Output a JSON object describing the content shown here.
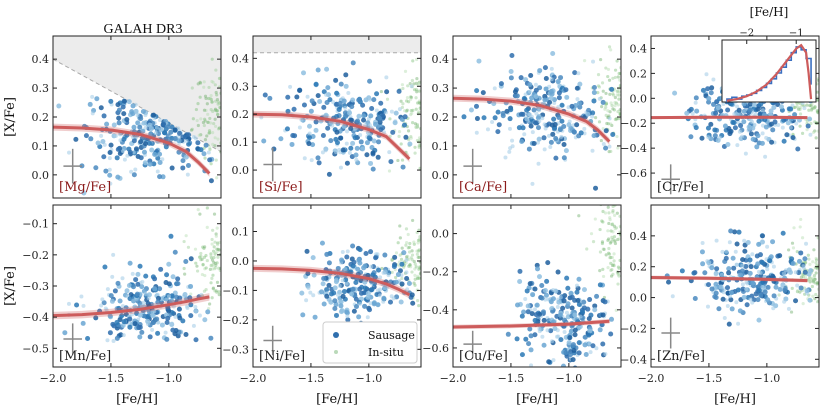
{
  "figure_title": "GALAH DR3",
  "shared": {
    "xlabel": "[Fe/H]",
    "ylabel": "[X/Fe]",
    "xlim": [
      -2.0,
      -0.55
    ],
    "xticks": [
      -2.0,
      -1.5,
      -1.0
    ],
    "xtick_labels": [
      "−2.0",
      "−1.5",
      "−1.0"
    ],
    "legend": [
      "Sausage",
      "In-situ"
    ],
    "series_colors": {
      "Sausage": "#2f6fae",
      "In-situ": "#8cc08a",
      "trend": "#cd5c5c",
      "limit_region": "#ececec"
    }
  },
  "chart_data": [
    {
      "type": "scatter",
      "element": "[Mg/Fe]",
      "label_color": "#8b1a1a",
      "ylim": [
        -0.08,
        0.48
      ],
      "yticks": [
        0.0,
        0.1,
        0.2,
        0.3,
        0.4
      ],
      "ytick_labels": [
        "0.0",
        "0.1",
        "0.2",
        "0.3",
        "0.4"
      ],
      "trend": {
        "x": [
          -2.0,
          -1.75,
          -1.5,
          -1.25,
          -1.0,
          -0.85,
          -0.75,
          -0.65
        ],
        "y": [
          0.165,
          0.162,
          0.155,
          0.14,
          0.11,
          0.08,
          0.045,
          0.005
        ]
      },
      "sausage": {
        "x_mean": -1.2,
        "x_sd": 0.25,
        "y_mean": 0.14,
        "y_sd": 0.07
      },
      "insitu": {
        "y_mean": 0.2,
        "y_sd": 0.08
      },
      "limit": {
        "type": "diagonal",
        "x": [
          -2.0,
          -0.55
        ],
        "y": [
          0.4,
          0.08
        ]
      },
      "error_bar": {
        "x": -1.83,
        "y": 0.03,
        "dx": 0.08,
        "dy": 0.06
      }
    },
    {
      "type": "scatter",
      "element": "[Si/Fe]",
      "label_color": "#8b1a1a",
      "ylim": [
        -0.1,
        0.48
      ],
      "yticks": [
        0.0,
        0.1,
        0.2,
        0.3,
        0.4
      ],
      "ytick_labels": [
        "0.0",
        "0.1",
        "0.2",
        "0.3",
        "0.4"
      ],
      "trend": {
        "x": [
          -2.0,
          -1.75,
          -1.5,
          -1.25,
          -1.0,
          -0.85,
          -0.75,
          -0.65
        ],
        "y": [
          0.2,
          0.198,
          0.19,
          0.175,
          0.145,
          0.12,
          0.08,
          0.04
        ]
      },
      "sausage": {
        "x_mean": -1.2,
        "x_sd": 0.25,
        "y_mean": 0.17,
        "y_sd": 0.08
      },
      "insitu": {
        "y_mean": 0.2,
        "y_sd": 0.08
      },
      "limit": {
        "type": "horizontal",
        "y": 0.42
      },
      "error_bar": {
        "x": -1.83,
        "y": 0.02,
        "dx": 0.08,
        "dy": 0.06
      }
    },
    {
      "type": "scatter",
      "element": "[Ca/Fe]",
      "label_color": "#8b1a1a",
      "ylim": [
        -0.08,
        0.48
      ],
      "yticks": [
        0.0,
        0.1,
        0.2,
        0.3,
        0.4
      ],
      "ytick_labels": [
        "0.0",
        "0.1",
        "0.2",
        "0.3",
        "0.4"
      ],
      "trend": {
        "x": [
          -2.0,
          -1.75,
          -1.5,
          -1.25,
          -1.0,
          -0.85,
          -0.75,
          -0.65
        ],
        "y": [
          0.265,
          0.262,
          0.255,
          0.24,
          0.21,
          0.185,
          0.155,
          0.115
        ]
      },
      "sausage": {
        "x_mean": -1.2,
        "x_sd": 0.25,
        "y_mean": 0.22,
        "y_sd": 0.08
      },
      "insitu": {
        "y_mean": 0.26,
        "y_sd": 0.08
      },
      "error_bar": {
        "x": -1.83,
        "y": 0.03,
        "dx": 0.08,
        "dy": 0.06
      }
    },
    {
      "type": "scatter",
      "element": "[Cr/Fe]",
      "label_color": "#222222",
      "ylim": [
        -0.8,
        0.5
      ],
      "yticks": [
        -0.6,
        -0.4,
        -0.2,
        0.0,
        0.2,
        0.4
      ],
      "ytick_labels": [
        "−0.6",
        "−0.4",
        "−0.2",
        "0.0",
        "0.2",
        "0.4"
      ],
      "trend": {
        "x": [
          -2.0,
          -1.5,
          -1.0,
          -0.65
        ],
        "y": [
          -0.155,
          -0.152,
          -0.152,
          -0.155
        ]
      },
      "sausage": {
        "x_mean": -1.15,
        "x_sd": 0.25,
        "y_mean": -0.15,
        "y_sd": 0.12
      },
      "insitu": {
        "y_mean": -0.05,
        "y_sd": 0.1
      },
      "error_bar": {
        "x": -1.83,
        "y": -0.65,
        "dx": 0.08,
        "dy": 0.12
      },
      "inset": {
        "type": "histogram",
        "xlabel": "[Fe/H]",
        "xlim": [
          -2.5,
          -0.6
        ],
        "xticks": [
          -2.0,
          -1.0
        ],
        "xtick_labels": [
          "−2",
          "−1"
        ],
        "bin_edges": [
          -2.4,
          -2.3,
          -2.2,
          -2.1,
          -2.0,
          -1.9,
          -1.8,
          -1.7,
          -1.6,
          -1.5,
          -1.4,
          -1.3,
          -1.2,
          -1.1,
          -1.0,
          -0.9,
          -0.8,
          -0.7
        ],
        "counts": [
          0.05,
          0.08,
          0.05,
          0.1,
          0.12,
          0.15,
          0.2,
          0.25,
          0.32,
          0.4,
          0.5,
          0.6,
          0.72,
          0.85,
          0.95,
          0.9,
          0.75,
          0.3
        ],
        "fit_x": [
          -2.4,
          -2.2,
          -2.0,
          -1.8,
          -1.6,
          -1.4,
          -1.2,
          -1.0,
          -0.9,
          -0.8,
          -0.75,
          -0.7
        ],
        "fit_y": [
          0.02,
          0.05,
          0.1,
          0.18,
          0.3,
          0.48,
          0.7,
          0.92,
          0.98,
          0.85,
          0.5,
          0.05
        ]
      }
    },
    {
      "type": "scatter",
      "element": "[Mn/Fe]",
      "label_color": "#222222",
      "ylim": [
        -0.56,
        -0.04
      ],
      "yticks": [
        -0.5,
        -0.4,
        -0.3,
        -0.2,
        -0.1
      ],
      "ytick_labels": [
        "−0.5",
        "−0.4",
        "−0.3",
        "−0.2",
        "−0.1"
      ],
      "trend": {
        "x": [
          -2.0,
          -1.75,
          -1.5,
          -1.25,
          -1.0,
          -0.85,
          -0.75,
          -0.65
        ],
        "y": [
          -0.395,
          -0.392,
          -0.385,
          -0.375,
          -0.36,
          -0.35,
          -0.342,
          -0.335
        ]
      },
      "sausage": {
        "x_mean": -1.2,
        "x_sd": 0.25,
        "y_mean": -0.37,
        "y_sd": 0.06
      },
      "insitu": {
        "y_mean": -0.22,
        "y_sd": 0.06
      },
      "error_bar": {
        "x": -1.83,
        "y": -0.47,
        "dx": 0.08,
        "dy": 0.05
      }
    },
    {
      "type": "scatter",
      "element": "[Ni/Fe]",
      "label_color": "#222222",
      "ylim": [
        -0.36,
        0.19
      ],
      "yticks": [
        -0.3,
        -0.2,
        -0.1,
        0.0,
        0.1
      ],
      "ytick_labels": [
        "−0.3",
        "−0.2",
        "−0.1",
        "0.0",
        "0.1"
      ],
      "trend": {
        "x": [
          -2.0,
          -1.75,
          -1.5,
          -1.25,
          -1.0,
          -0.85,
          -0.75,
          -0.65
        ],
        "y": [
          -0.025,
          -0.027,
          -0.032,
          -0.042,
          -0.06,
          -0.078,
          -0.095,
          -0.115
        ]
      },
      "sausage": {
        "x_mean": -1.1,
        "x_sd": 0.22,
        "y_mean": -0.08,
        "y_sd": 0.06
      },
      "insitu": {
        "y_mean": 0.0,
        "y_sd": 0.06
      },
      "error_bar": {
        "x": -1.83,
        "y": -0.27,
        "dx": 0.08,
        "dy": 0.05
      }
    },
    {
      "type": "scatter",
      "element": "[Cu/Fe]",
      "label_color": "#222222",
      "ylim": [
        -0.7,
        0.15
      ],
      "yticks": [
        -0.6,
        -0.4,
        -0.2,
        0.0
      ],
      "ytick_labels": [
        "−0.6",
        "−0.4",
        "−0.2",
        "0.0"
      ],
      "trend": {
        "x": [
          -2.0,
          -1.5,
          -1.0,
          -0.65
        ],
        "y": [
          -0.49,
          -0.485,
          -0.475,
          -0.46
        ]
      },
      "sausage": {
        "x_mean": -1.05,
        "x_sd": 0.2,
        "y_mean": -0.45,
        "y_sd": 0.12
      },
      "insitu": {
        "y_mean": -0.05,
        "y_sd": 0.12
      },
      "error_bar": {
        "x": -1.83,
        "y": -0.58,
        "dx": 0.08,
        "dy": 0.07
      }
    },
    {
      "type": "scatter",
      "element": "[Zn/Fe]",
      "label_color": "#222222",
      "ylim": [
        -0.45,
        0.6
      ],
      "yticks": [
        -0.4,
        -0.2,
        0.0,
        0.2,
        0.4
      ],
      "ytick_labels": [
        "−0.4",
        "−0.2",
        "0.0",
        "0.2",
        "0.4"
      ],
      "trend": {
        "x": [
          -2.0,
          -1.5,
          -1.0,
          -0.65
        ],
        "y": [
          0.13,
          0.125,
          0.118,
          0.11
        ]
      },
      "sausage": {
        "x_mean": -1.15,
        "x_sd": 0.25,
        "y_mean": 0.12,
        "y_sd": 0.12
      },
      "insitu": {
        "y_mean": 0.18,
        "y_sd": 0.12
      },
      "error_bar": {
        "x": -1.83,
        "y": -0.23,
        "dx": 0.08,
        "dy": 0.1
      }
    }
  ]
}
